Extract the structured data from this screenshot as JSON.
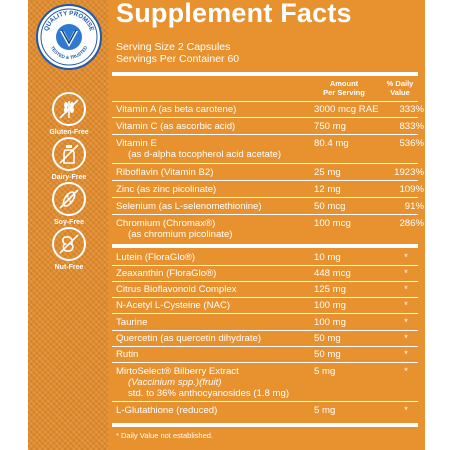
{
  "badge": {
    "ring_text_top": "QUALITY PROMISE",
    "ring_text_bottom": "TESTED & TRUSTED"
  },
  "free_from": [
    {
      "icon": "wheat-icon",
      "label": "Gluten-Free"
    },
    {
      "icon": "milk-bottle-icon",
      "label": "Dairy-Free"
    },
    {
      "icon": "soybean-icon",
      "label": "Soy-Free"
    },
    {
      "icon": "peanut-icon",
      "label": "Nut-Free"
    }
  ],
  "facts": {
    "title": "Supplement Facts",
    "serving_size": "Serving Size 2 Capsules",
    "servings_per_container": "Servings Per Container 60",
    "header_amount_1": "Amount",
    "header_amount_2": "Per Serving",
    "header_dv_1": "% Daily",
    "header_dv_2": "Value",
    "rows": [
      {
        "name": "Vitamin A (as beta carotene)",
        "amount": "3000 mcg RAE",
        "dv": "333%"
      },
      {
        "name": "Vitamin C (as ascorbic acid)",
        "amount": "750 mg",
        "dv": "833%"
      },
      {
        "name": "Vitamin E",
        "name2": "(as d-alpha tocopherol acid acetate)",
        "amount": "80.4 mg",
        "dv": "536%"
      },
      {
        "name": "Riboflavin (Vitamin B2)",
        "amount": "25 mg",
        "dv": "1923%"
      },
      {
        "name": "Zinc (as zinc picolinate)",
        "amount": "12 mg",
        "dv": "109%"
      },
      {
        "name": "Selenium (as L-selenomethionine)",
        "amount": "50 mcg",
        "dv": "91%"
      },
      {
        "name": "Chromium (Chromax®)",
        "name2": "(as chromium picolinate)",
        "amount": "100 mcg",
        "dv": "286%"
      },
      {
        "name": "Lutein (FloraGlo®)",
        "amount": "10 mg",
        "dv": "*"
      },
      {
        "name": "Zeaxanthin (FloraGlo®)",
        "amount": "448 mcg",
        "dv": "*"
      },
      {
        "name": "Citrus Bioflavonoid Complex",
        "amount": "125 mg",
        "dv": "*"
      },
      {
        "name": "N-Acetyl L-Cysteine (NAC)",
        "amount": "100 mg",
        "dv": "*"
      },
      {
        "name": "Taurine",
        "amount": "100 mg",
        "dv": "*"
      },
      {
        "name": "Quercetin (as quercetin dihydrate)",
        "amount": "50 mg",
        "dv": "*"
      },
      {
        "name": "Rutin",
        "amount": "50 mg",
        "dv": "*"
      },
      {
        "name": "MirtoSelect® Bilberry Extract",
        "name2": "(Vaccinium spp.)(fruit)",
        "name3": "std. to 36% anthocyanosides (1.8 mg)",
        "amount": "5 mg",
        "dv": "*"
      },
      {
        "name": "L-Glutathione (reduced)",
        "amount": "5 mg",
        "dv": "*"
      }
    ],
    "footnote": "* Daily Value not established."
  },
  "colors": {
    "panel": "#e8922f",
    "badge_blue": "#1f5aa8",
    "text": "#ffffff"
  }
}
